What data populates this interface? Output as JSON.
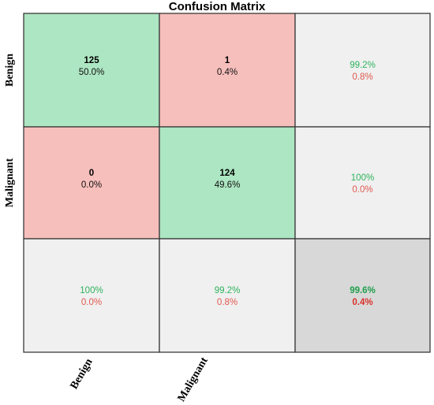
{
  "chart_data": {
    "type": "table",
    "title": "Confusion Matrix",
    "row_labels": [
      "Benign",
      "Malignant"
    ],
    "col_labels": [
      "Benign",
      "Malignant"
    ],
    "cells": [
      [
        {
          "count": "125",
          "percent": "50.0%",
          "kind": "correct"
        },
        {
          "count": "1",
          "percent": "0.4%",
          "kind": "error"
        },
        {
          "top": "99.2%",
          "bottom": "0.8%",
          "kind": "summary"
        }
      ],
      [
        {
          "count": "0",
          "percent": "0.0%",
          "kind": "error"
        },
        {
          "count": "124",
          "percent": "49.6%",
          "kind": "correct"
        },
        {
          "top": "100%",
          "bottom": "0.0%",
          "kind": "summary"
        }
      ],
      [
        {
          "top": "100%",
          "bottom": "0.0%",
          "kind": "summary"
        },
        {
          "top": "99.2%",
          "bottom": "0.8%",
          "kind": "summary"
        },
        {
          "top": "99.6%",
          "bottom": "0.4%",
          "kind": "total"
        }
      ]
    ],
    "colors": {
      "correct_fill": "#ade6c2",
      "error_fill": "#f7bfbc",
      "summary_fill": "#f0f0f0",
      "total_fill": "#d8d8d8",
      "good_text": "#2db35c",
      "bad_text": "#e0584f",
      "total_good_text": "#1f9e4b",
      "total_bad_text": "#d8312a"
    }
  }
}
